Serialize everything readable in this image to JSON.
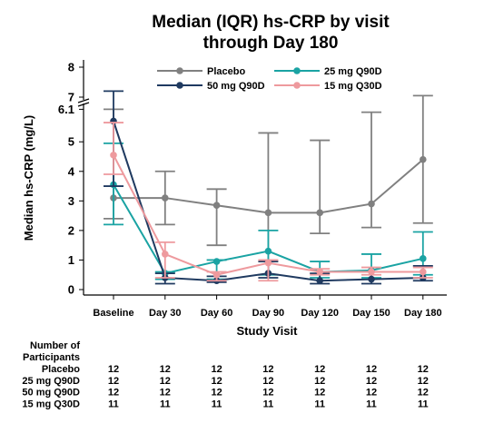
{
  "chart_data": {
    "type": "line",
    "title_lines": [
      "Median (IQR) hs-CRP by visit",
      "through Day 180"
    ],
    "xlabel": "Study Visit",
    "ylabel": "Median hs-CRP (mg/L)",
    "categories": [
      "Baseline",
      "Day 30",
      "Day 60",
      "Day 90",
      "Day 120",
      "Day 150",
      "Day 180"
    ],
    "y_lower_ticks": [
      "0",
      "1",
      "2",
      "3",
      "4",
      "5",
      "6.1"
    ],
    "y_upper_ticks": [
      "7",
      "8"
    ],
    "broken_axis": {
      "lower_range": [
        0,
        6.1
      ],
      "upper_range": [
        7,
        8
      ]
    },
    "series": [
      {
        "name": "Placebo",
        "color": "#808080",
        "values": [
          3.1,
          3.1,
          2.85,
          2.6,
          2.6,
          2.9,
          4.4
        ],
        "q1": [
          2.4,
          2.2,
          1.5,
          0.5,
          1.9,
          2.1,
          2.25
        ],
        "q3": [
          6.1,
          4.0,
          3.4,
          5.3,
          5.05,
          6.0,
          7.05
        ]
      },
      {
        "name": "25 mg Q90D",
        "color": "#1aa3a3",
        "values": [
          3.55,
          0.55,
          0.95,
          1.3,
          0.6,
          0.65,
          1.05
        ],
        "q1": [
          2.2,
          0.35,
          0.35,
          0.5,
          0.4,
          0.4,
          0.5
        ],
        "q3": [
          4.95,
          0.6,
          1.0,
          2.0,
          0.95,
          1.2,
          1.95
        ]
      },
      {
        "name": "50 mg Q90D",
        "color": "#1f3a60",
        "values": [
          5.7,
          0.4,
          0.3,
          0.55,
          0.3,
          0.35,
          0.4
        ],
        "q1": [
          3.5,
          0.2,
          0.25,
          0.4,
          0.2,
          0.2,
          0.3
        ],
        "q3": [
          7.2,
          0.55,
          0.45,
          0.95,
          0.55,
          0.6,
          0.8
        ]
      },
      {
        "name": "15 mg Q30D",
        "color": "#ee9a9e",
        "values": [
          4.55,
          1.2,
          0.5,
          0.9,
          0.6,
          0.6,
          0.6
        ],
        "q1": [
          3.9,
          0.4,
          0.3,
          0.3,
          0.5,
          0.5,
          0.4
        ],
        "q3": [
          5.65,
          1.6,
          0.6,
          1.0,
          0.7,
          0.75,
          0.75
        ]
      }
    ],
    "legend_position": "top",
    "legend_order": [
      0,
      1,
      2,
      3
    ],
    "grid": false
  },
  "table": {
    "header_lines": [
      "Number of",
      "Participants"
    ],
    "rows": [
      {
        "label": "Placebo",
        "counts": [
          "12",
          "12",
          "12",
          "12",
          "12",
          "12",
          "12"
        ]
      },
      {
        "label": "25 mg Q90D",
        "counts": [
          "12",
          "12",
          "12",
          "12",
          "12",
          "12",
          "12"
        ]
      },
      {
        "label": "50 mg Q90D",
        "counts": [
          "12",
          "12",
          "12",
          "12",
          "12",
          "12",
          "12"
        ]
      },
      {
        "label": "15 mg Q30D",
        "counts": [
          "11",
          "11",
          "11",
          "11",
          "11",
          "11",
          "11"
        ]
      }
    ]
  }
}
